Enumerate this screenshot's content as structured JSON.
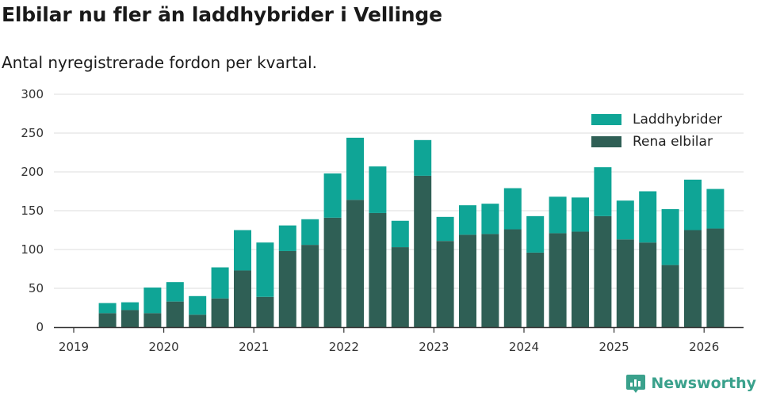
{
  "title": "Elbilar nu fler än laddhybrider i Vellinge",
  "subtitle": "Antal nyregistrerade fordon per kvartal.",
  "brand": "Newsworthy",
  "colors": {
    "ev": "#2f5f55",
    "phev": "#0fa596",
    "grid": "#dcdcdc",
    "axis": "#333333"
  },
  "chart_data": {
    "type": "bar",
    "stacked": true,
    "title": "Elbilar nu fler än laddhybrider i Vellinge",
    "subtitle": "Antal nyregistrerade fordon per kvartal.",
    "xlabel": "",
    "ylabel": "",
    "ylim": [
      0,
      300
    ],
    "yticks": [
      0,
      50,
      100,
      150,
      200,
      250,
      300
    ],
    "xticks": [
      "2019",
      "2020",
      "2021",
      "2022",
      "2023",
      "2024",
      "2025",
      "2026"
    ],
    "grid": true,
    "legend_position": "top-right",
    "categories": [
      "2019 Q2",
      "2019 Q3",
      "2019 Q4",
      "2020 Q1",
      "2020 Q2",
      "2020 Q3",
      "2020 Q4",
      "2021 Q1",
      "2021 Q2",
      "2021 Q3",
      "2021 Q4",
      "2022 Q1",
      "2022 Q2",
      "2022 Q3",
      "2022 Q4",
      "2023 Q1",
      "2023 Q2",
      "2023 Q3",
      "2023 Q4",
      "2024 Q1",
      "2024 Q2",
      "2024 Q3",
      "2024 Q4",
      "2025 Q1",
      "2025 Q2",
      "2025 Q3",
      "2025 Q4",
      "2026 Q1"
    ],
    "series": [
      {
        "name": "Rena elbilar",
        "color": "#2f5f55",
        "values": [
          18,
          22,
          18,
          33,
          16,
          37,
          73,
          39,
          98,
          106,
          141,
          164,
          147,
          103,
          195,
          111,
          119,
          120,
          126,
          96,
          121,
          123,
          143,
          113,
          109,
          80,
          125,
          127
        ]
      },
      {
        "name": "Laddhybrider",
        "color": "#0fa596",
        "values": [
          13,
          10,
          33,
          25,
          24,
          40,
          52,
          70,
          33,
          33,
          57,
          80,
          60,
          34,
          46,
          31,
          38,
          39,
          53,
          47,
          47,
          44,
          63,
          50,
          66,
          72,
          65,
          51
        ]
      }
    ],
    "legend": [
      "Laddhybrider",
      "Rena elbilar"
    ]
  }
}
